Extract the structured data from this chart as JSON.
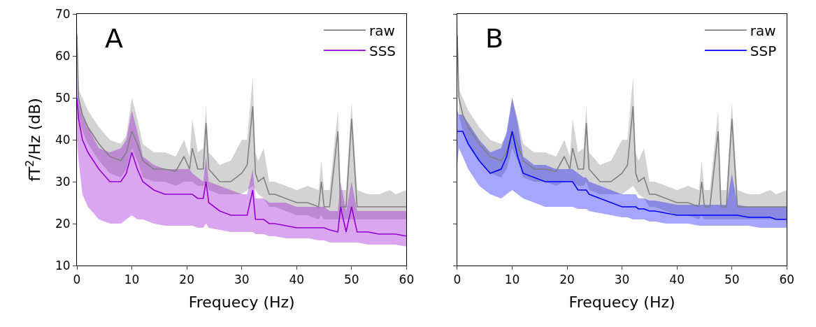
{
  "chart_data": [
    {
      "type": "line",
      "title": "A",
      "xlabel": "Frequecy (Hz)",
      "ylabel": "fT$^{2}$/Hz (dB)",
      "legend": "top right",
      "x": [
        0,
        0.3,
        1,
        2,
        4,
        6,
        8,
        9,
        10,
        11,
        12,
        14,
        16,
        18,
        19.5,
        20.5,
        21,
        22,
        23,
        23.5,
        24,
        26,
        28,
        30,
        31,
        32,
        32.5,
        33,
        34,
        35,
        36,
        38,
        40,
        42,
        44,
        44.5,
        45,
        46,
        47.5,
        48,
        49,
        50,
        51,
        53,
        55,
        57,
        58,
        60
      ],
      "series": [
        {
          "name": "raw",
          "color": "#808080",
          "values": [
            65,
            50,
            46,
            43,
            39,
            36,
            35,
            37,
            42,
            39,
            35,
            33,
            33,
            32.5,
            36,
            33,
            38,
            33,
            33,
            44,
            33,
            30,
            30,
            32,
            34,
            48,
            32,
            30,
            31,
            27,
            27,
            26,
            25,
            25,
            24,
            30,
            24,
            24,
            42,
            24,
            24,
            45,
            24,
            24,
            24,
            24,
            24,
            24
          ],
          "lower": [
            60,
            46,
            42,
            39,
            35,
            32,
            31,
            33,
            38,
            35,
            31,
            30,
            30,
            29,
            30,
            30,
            30,
            29,
            29,
            30,
            28,
            27,
            27,
            27,
            28,
            29,
            28,
            27,
            26,
            24,
            24,
            23,
            22,
            22,
            21,
            22,
            21,
            21,
            21,
            21,
            21,
            21,
            21,
            21,
            21,
            21,
            21,
            21
          ],
          "upper": [
            70,
            52,
            50,
            47,
            43,
            40,
            39,
            41,
            50,
            45,
            39,
            37,
            37,
            36,
            40,
            36,
            45,
            37,
            38,
            48,
            37,
            34,
            35,
            40,
            40,
            55,
            37,
            35,
            38,
            30,
            30,
            29,
            28,
            29,
            28,
            35,
            28,
            28,
            47,
            28,
            28,
            49,
            28,
            27,
            27,
            28,
            27,
            28
          ]
        },
        {
          "name": "SSS",
          "color": "#9400d3",
          "values": [
            50,
            45,
            40,
            37,
            33,
            30,
            30,
            32,
            37,
            33,
            30,
            28,
            27,
            27,
            27,
            27,
            27,
            26,
            26,
            30,
            25,
            23,
            22,
            22,
            22,
            28,
            21,
            21,
            21,
            20,
            20,
            19.5,
            19,
            19,
            19,
            19,
            19,
            18.5,
            18,
            24,
            18,
            24,
            18,
            18,
            17.5,
            17.5,
            17.5,
            17
          ],
          "lower": [
            40,
            35,
            27,
            24,
            21,
            20,
            20,
            21,
            22,
            21,
            21,
            20,
            19.5,
            19.5,
            19.5,
            19.5,
            19.5,
            19,
            19,
            20,
            19,
            18.5,
            18,
            18,
            18,
            18,
            17.5,
            17.5,
            17.5,
            17,
            17,
            16.5,
            16.5,
            16.5,
            16,
            16,
            16,
            15.5,
            15.5,
            15.5,
            15.5,
            15.5,
            15.5,
            15,
            15,
            15,
            15,
            14.5
          ],
          "upper": [
            57,
            50,
            46,
            43,
            38,
            37,
            38,
            40,
            47,
            42,
            36,
            34,
            33,
            33,
            33,
            33,
            32,
            31,
            30,
            36,
            30,
            29,
            28,
            27,
            27,
            33,
            26,
            26,
            26,
            25,
            25,
            25,
            24,
            24,
            24,
            24,
            24,
            23,
            23,
            30,
            23,
            30,
            23,
            23,
            23,
            23,
            23,
            23
          ]
        }
      ],
      "xlim": [
        0,
        60
      ],
      "ylim": [
        10,
        70
      ],
      "xticks": [
        0,
        10,
        20,
        30,
        40,
        50,
        60
      ],
      "yticks": [
        10,
        20,
        30,
        40,
        50,
        60,
        70
      ]
    },
    {
      "type": "line",
      "title": "B",
      "xlabel": "Frequecy (Hz)",
      "legend": "top right",
      "tick_labels": "x",
      "x": [
        0,
        0.3,
        1,
        2,
        4,
        6,
        8,
        9,
        10,
        11,
        12,
        14,
        16,
        18,
        19.5,
        20.5,
        21,
        22,
        23,
        23.5,
        24,
        26,
        28,
        30,
        31,
        32,
        32.5,
        33,
        34,
        35,
        36,
        38,
        40,
        42,
        44,
        44.5,
        45,
        46,
        47.5,
        48,
        49,
        50,
        51,
        53,
        55,
        57,
        58,
        60
      ],
      "series": [
        {
          "name": "raw",
          "color": "#808080",
          "values": [
            65,
            50,
            46,
            43,
            39,
            36,
            35,
            37,
            42,
            39,
            35,
            33,
            33,
            32.5,
            36,
            33,
            38,
            33,
            33,
            44,
            33,
            30,
            30,
            32,
            34,
            48,
            32,
            30,
            31,
            27,
            27,
            26,
            25,
            25,
            24,
            30,
            24,
            24,
            42,
            24,
            24,
            45,
            24,
            24,
            24,
            24,
            24,
            24
          ],
          "lower": [
            60,
            46,
            42,
            39,
            35,
            32,
            31,
            33,
            38,
            35,
            31,
            30,
            30,
            29,
            30,
            30,
            30,
            29,
            29,
            30,
            28,
            27,
            27,
            27,
            28,
            29,
            28,
            27,
            26,
            24,
            24,
            23,
            22,
            22,
            21,
            22,
            21,
            21,
            21,
            21,
            21,
            21,
            21,
            21,
            21,
            21,
            21,
            21
          ],
          "upper": [
            70,
            52,
            50,
            47,
            43,
            40,
            39,
            41,
            50,
            45,
            39,
            37,
            37,
            36,
            40,
            36,
            45,
            37,
            38,
            48,
            37,
            34,
            35,
            40,
            40,
            55,
            37,
            35,
            38,
            30,
            30,
            29,
            28,
            29,
            28,
            35,
            28,
            28,
            47,
            28,
            28,
            49,
            28,
            27,
            27,
            28,
            27,
            28
          ]
        },
        {
          "name": "SSP",
          "color": "#0000ff",
          "values": [
            42,
            42,
            42,
            39,
            35,
            32,
            33,
            36,
            42,
            36,
            32,
            31,
            30,
            30,
            30,
            30,
            30,
            28,
            28,
            28,
            27,
            26,
            25,
            24,
            24,
            24,
            24,
            23.5,
            23.5,
            23,
            23,
            22.5,
            22,
            22,
            22,
            22,
            22,
            22,
            22,
            22,
            22,
            22,
            22,
            21.5,
            21.5,
            21.5,
            21,
            21
          ],
          "lower": [
            34,
            38,
            36,
            33,
            29,
            27,
            26,
            27,
            28,
            27,
            26,
            25,
            24,
            24,
            24,
            24,
            24,
            23.5,
            23.5,
            23.5,
            23,
            22.5,
            22,
            21.5,
            21.5,
            21,
            21,
            21,
            21,
            20.5,
            20.5,
            20,
            20,
            20,
            19.5,
            19.5,
            19.5,
            19.5,
            19.5,
            19.5,
            19.5,
            19.5,
            19.5,
            19.5,
            19,
            19,
            19,
            19
          ],
          "upper": [
            47,
            46,
            46,
            44,
            40,
            37,
            38,
            42,
            50,
            44,
            36,
            34,
            34,
            33,
            33,
            33,
            33,
            32,
            31,
            31,
            30,
            29,
            28,
            27,
            27,
            27,
            27,
            26,
            26,
            25.5,
            25.5,
            25,
            24.5,
            24.5,
            24.5,
            24.5,
            24.5,
            24.5,
            24.5,
            24.5,
            24.5,
            32,
            24.5,
            24,
            24,
            24,
            24,
            24
          ]
        }
      ],
      "xlim": [
        0,
        60
      ],
      "ylim": [
        10,
        70
      ],
      "xticks": [
        0,
        10,
        20,
        30,
        40,
        50,
        60
      ],
      "yticks": [
        10,
        20,
        30,
        40,
        50,
        60,
        70
      ]
    }
  ]
}
